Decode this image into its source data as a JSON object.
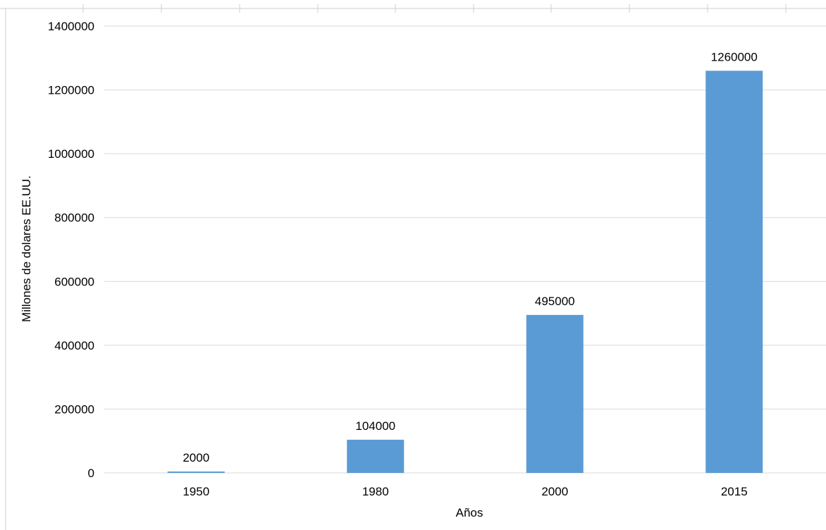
{
  "chart_data": {
    "type": "bar",
    "categories": [
      "1950",
      "1980",
      "2000",
      "2015"
    ],
    "values": [
      2000,
      104000,
      495000,
      1260000
    ],
    "data_labels": [
      "2000",
      "104000",
      "495000",
      "1260000"
    ],
    "title": "",
    "xlabel": "Años",
    "ylabel": "Millones de dolares EE.UU.",
    "ylim": [
      0,
      1400000
    ],
    "yticks": [
      0,
      200000,
      400000,
      600000,
      800000,
      1000000,
      1200000,
      1400000
    ],
    "ytick_labels": [
      "0",
      "200000",
      "400000",
      "600000",
      "800000",
      "1000000",
      "1200000",
      "1400000"
    ],
    "grid": true,
    "legend": "none",
    "bar_color": "#5b9bd5"
  }
}
